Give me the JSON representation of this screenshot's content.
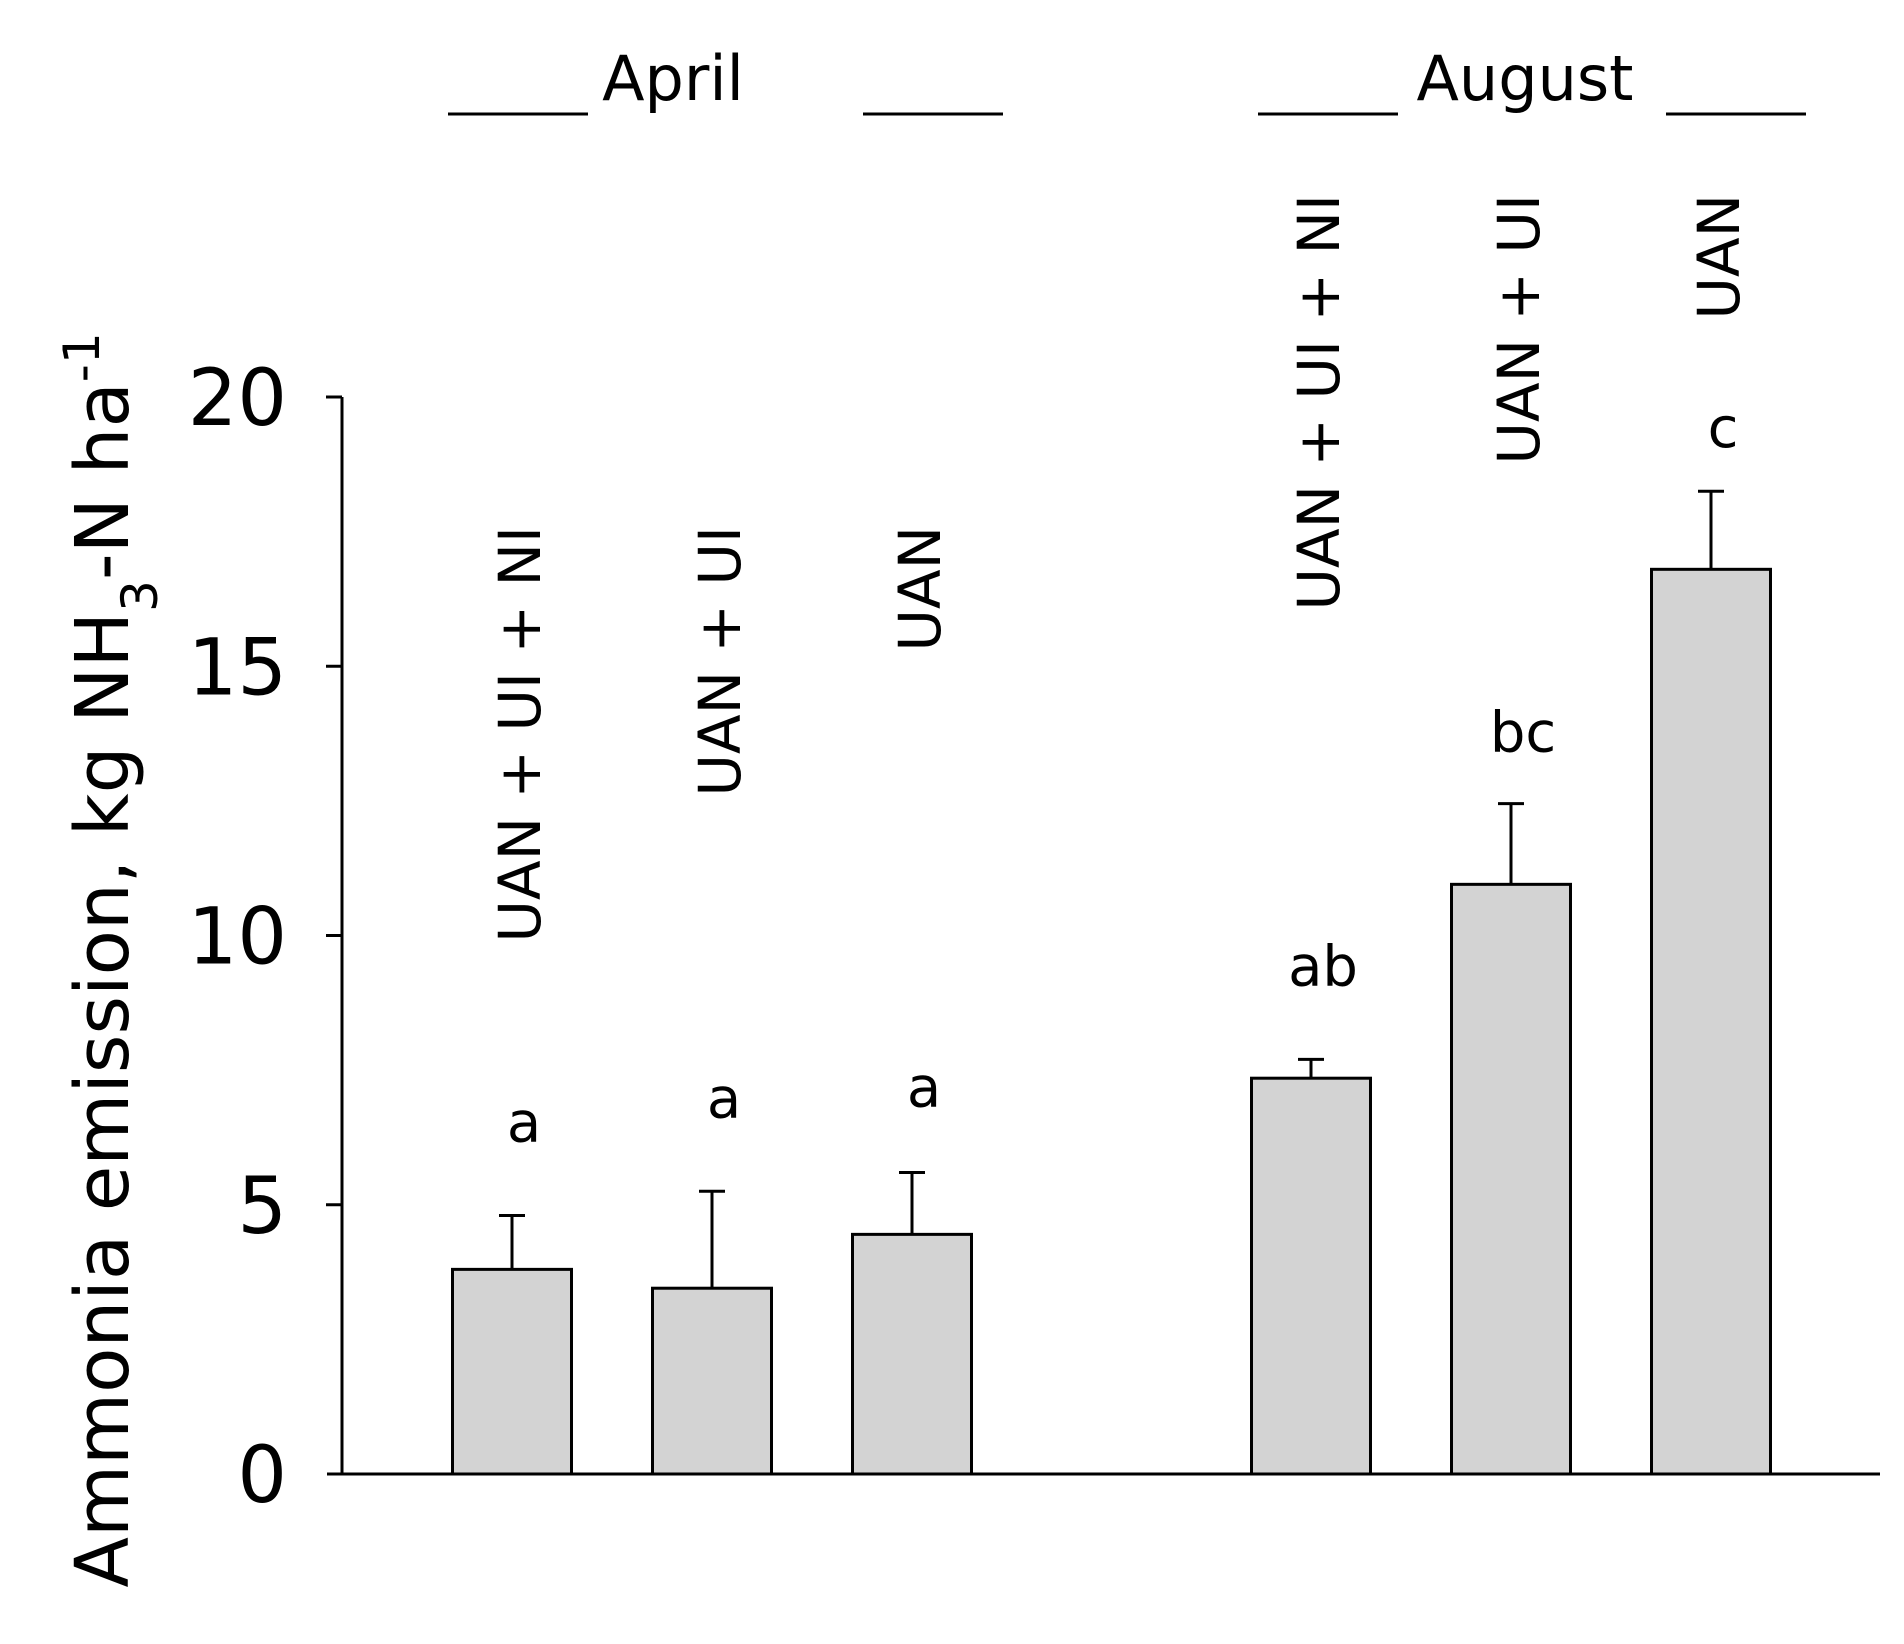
{
  "chart_data": {
    "type": "bar",
    "ylabel": "Ammonia emission, kg NH3-N ha-1",
    "ylim": [
      0,
      20
    ],
    "yticks": [
      0,
      5,
      10,
      15,
      20
    ],
    "grid": false,
    "groups": [
      {
        "label": "April",
        "bar_indices": [
          0,
          1,
          2
        ]
      },
      {
        "label": "August",
        "bar_indices": [
          3,
          4,
          5
        ]
      }
    ],
    "bars": [
      {
        "group": "April",
        "treatment": "UAN + UI + NI",
        "value": 3.8,
        "error": 1.0,
        "letter": "a"
      },
      {
        "group": "April",
        "treatment": "UAN + UI",
        "value": 3.45,
        "error": 1.8,
        "letter": "a"
      },
      {
        "group": "April",
        "treatment": "UAN",
        "value": 4.45,
        "error": 1.15,
        "letter": "a"
      },
      {
        "group": "August",
        "treatment": "UAN + UI + NI",
        "value": 7.35,
        "error": 0.35,
        "letter": "ab"
      },
      {
        "group": "August",
        "treatment": "UAN + UI",
        "value": 10.95,
        "error": 1.5,
        "letter": "bc"
      },
      {
        "group": "August",
        "treatment": "UAN",
        "value": 16.8,
        "error": 1.45,
        "letter": "c"
      }
    ],
    "colors": {
      "bar_fill": "#d3d3d3",
      "bar_stroke": "#000000"
    }
  }
}
